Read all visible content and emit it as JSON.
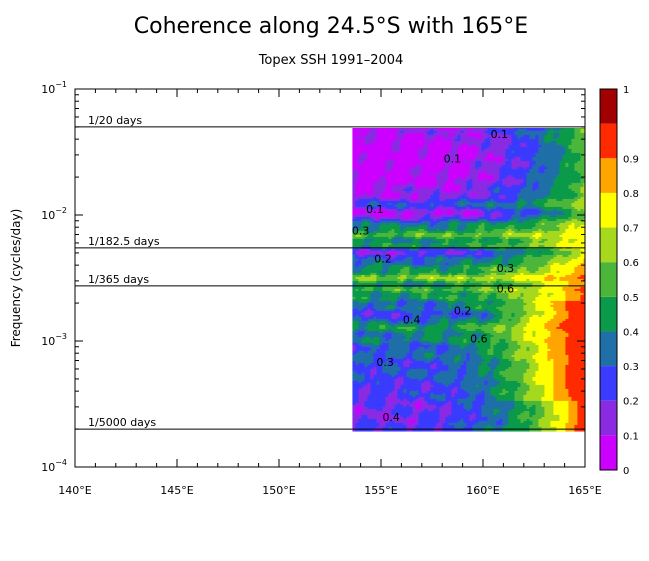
{
  "chart_data": {
    "type": "heatmap",
    "title": "Coherence along 24.5°S with 165°E",
    "subtitle": "Topex SSH 1991–2004",
    "xlabel": "",
    "ylabel": "Frequency (cycles/day)",
    "x_scale": "linear",
    "y_scale": "log",
    "xlim": [
      140,
      165
    ],
    "ylim": [
      0.0001,
      0.1
    ],
    "x_ticks": [
      140,
      145,
      150,
      155,
      160,
      165
    ],
    "x_tick_labels": [
      "140°E",
      "145°E",
      "150°E",
      "155°E",
      "160°E",
      "165°E"
    ],
    "y_ticks": [
      0.0001,
      0.001,
      0.01,
      0.1
    ],
    "y_tick_labels": [
      {
        "base": "10",
        "exp": "−4"
      },
      {
        "base": "10",
        "exp": "−3"
      },
      {
        "base": "10",
        "exp": "−2"
      },
      {
        "base": "10",
        "exp": "−1"
      }
    ],
    "data_extent": {
      "lon": [
        153.6,
        165
      ],
      "freq": [
        0.0002,
        0.05
      ]
    },
    "reference_lines": [
      {
        "label": "1/20 days",
        "freq": 0.05
      },
      {
        "label": "1/182.5 days",
        "freq": 0.005479
      },
      {
        "label": "1/365 days",
        "freq": 0.00274
      },
      {
        "label": "1/5000 days",
        "freq": 0.0002
      }
    ],
    "colorbar": {
      "levels": [
        0,
        0.1,
        0.2,
        0.3,
        0.4,
        0.5,
        0.6,
        0.7,
        0.8,
        0.9,
        1
      ],
      "labels": [
        "0",
        "0.1",
        "0.2",
        "0.3",
        "0.4",
        "0.5",
        "0.6",
        "0.7",
        "0.8",
        "0.9",
        "1"
      ],
      "colors": [
        "#cc00ff",
        "#8a2be2",
        "#3b3bff",
        "#1f6fa8",
        "#0a9a4a",
        "#4cb63a",
        "#a6d81e",
        "#ffff00",
        "#ffa500",
        "#ff2a00",
        "#a00000"
      ]
    },
    "contour_labels": [
      {
        "text": "0.1",
        "lon": 160.8,
        "freq": 0.044
      },
      {
        "text": "0.1",
        "lon": 158.5,
        "freq": 0.028
      },
      {
        "text": "0.1",
        "lon": 154.7,
        "freq": 0.0112
      },
      {
        "text": "0.3",
        "lon": 154.0,
        "freq": 0.0075
      },
      {
        "text": "0.2",
        "lon": 155.1,
        "freq": 0.0045
      },
      {
        "text": "0.3",
        "lon": 161.1,
        "freq": 0.0038
      },
      {
        "text": "0.6",
        "lon": 161.1,
        "freq": 0.0026
      },
      {
        "text": "0.2",
        "lon": 159.0,
        "freq": 0.00175
      },
      {
        "text": "0.4",
        "lon": 156.5,
        "freq": 0.00148
      },
      {
        "text": "0.6",
        "lon": 159.8,
        "freq": 0.00105
      },
      {
        "text": "0.3",
        "lon": 155.2,
        "freq": 0.00068
      },
      {
        "text": "0.4",
        "lon": 155.5,
        "freq": 0.00025
      }
    ],
    "grid": false,
    "legend": "colorbar-right"
  }
}
